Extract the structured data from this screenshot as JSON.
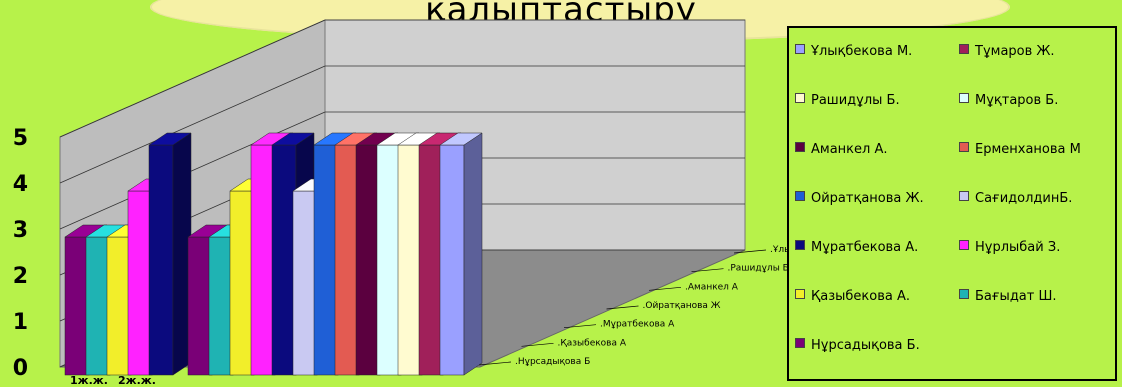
{
  "title": "қалыптастыру",
  "chart_data": {
    "type": "bar",
    "subtype": "3d-grouped-bar",
    "categories": [
      "1ж.ж.",
      "2ж.ж."
    ],
    "ylim": [
      0,
      5
    ],
    "yticks": [
      "0",
      "1",
      "2",
      "3",
      "4",
      "5"
    ],
    "series": [
      {
        "name": "Нұрсадықова Б.",
        "values": [
          3,
          3
        ],
        "color": "#7a0077"
      },
      {
        "name": "Бағыдат Ш.",
        "values": [
          3,
          3
        ],
        "color": "#1fb3b3"
      },
      {
        "name": "Қазыбекова А.",
        "values": [
          3,
          4
        ],
        "color": "#f2ee2a"
      },
      {
        "name": "Нұрлыбай З.",
        "values": [
          4,
          5
        ],
        "color": "#ff22ff"
      },
      {
        "name": "Мұратбекова А.",
        "values": [
          5,
          5
        ],
        "color": "#0b0a7e"
      },
      {
        "name": "СағидолдинБ.",
        "values": [
          null,
          4
        ],
        "color": "#c9c9f2"
      },
      {
        "name": "Ойратқанова Ж.",
        "values": [
          null,
          5
        ],
        "color": "#1f5fd6"
      },
      {
        "name": "Ерменханова М",
        "values": [
          null,
          5
        ],
        "color": "#e35b52"
      },
      {
        "name": "Аманкел А.",
        "values": [
          null,
          5
        ],
        "color": "#5b003f"
      },
      {
        "name": "Мұқтаров Б.",
        "values": [
          null,
          5
        ],
        "color": "#dcffff"
      },
      {
        "name": "Рашидұлы Б.",
        "values": [
          null,
          5
        ],
        "color": "#fffbd0"
      },
      {
        "name": "Тұмаров Ж.",
        "values": [
          null,
          5
        ],
        "color": "#a0205a"
      },
      {
        "name": "Ұлықбекова М.",
        "values": [
          null,
          5
        ],
        "color": "#9aa0ff"
      }
    ],
    "depth_labels": [
      ".Нұрсадықова Б",
      ".Қазыбекова А",
      ".Мұратбекова А",
      ".Ойратқанова Ж",
      ".Аманкел А",
      ".Рашидұлы Б",
      ".Ұлықбекова М"
    ],
    "legend_position": "right",
    "legend_order": [
      "Ұлықбекова М.",
      "Тұмаров Ж.",
      "Рашидұлы Б.",
      "Мұқтаров Б.",
      "Аманкел А.",
      "Ерменханова М",
      "Ойратқанова Ж.",
      "СағидолдинБ.",
      "Мұратбекова А.",
      "Нұрлыбай З.",
      "Қазыбекова А.",
      "Бағыдат Ш.",
      "Нұрсадықова Б."
    ],
    "grid": true
  }
}
